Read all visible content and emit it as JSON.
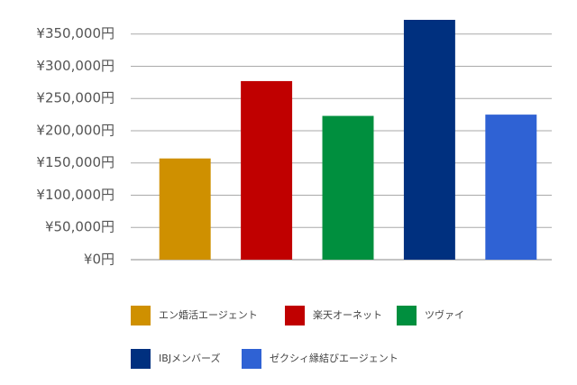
{
  "chart_data": {
    "type": "bar",
    "categories": [
      "エン婚活エージェント",
      "楽天オーネット",
      "ツヴァイ",
      "IBJメンバーズ",
      "ゼクシィ縁結びエージェント"
    ],
    "values": [
      157000,
      277000,
      223000,
      372000,
      225000
    ],
    "colors": [
      "#cf9000",
      "#c00000",
      "#008f3e",
      "#00307f",
      "#2f62d4"
    ],
    "ylim": [
      0,
      372000
    ],
    "yticks": [
      {
        "value": 0,
        "label": "¥0円"
      },
      {
        "value": 50000,
        "label": "¥50,000円"
      },
      {
        "value": 100000,
        "label": "¥100,000円"
      },
      {
        "value": 150000,
        "label": "¥150,000円"
      },
      {
        "value": 200000,
        "label": "¥200,000円"
      },
      {
        "value": 250000,
        "label": "¥250,000円"
      },
      {
        "value": 300000,
        "label": "¥300,000円"
      },
      {
        "value": 350000,
        "label": "¥350,000円"
      }
    ],
    "grid": true
  }
}
